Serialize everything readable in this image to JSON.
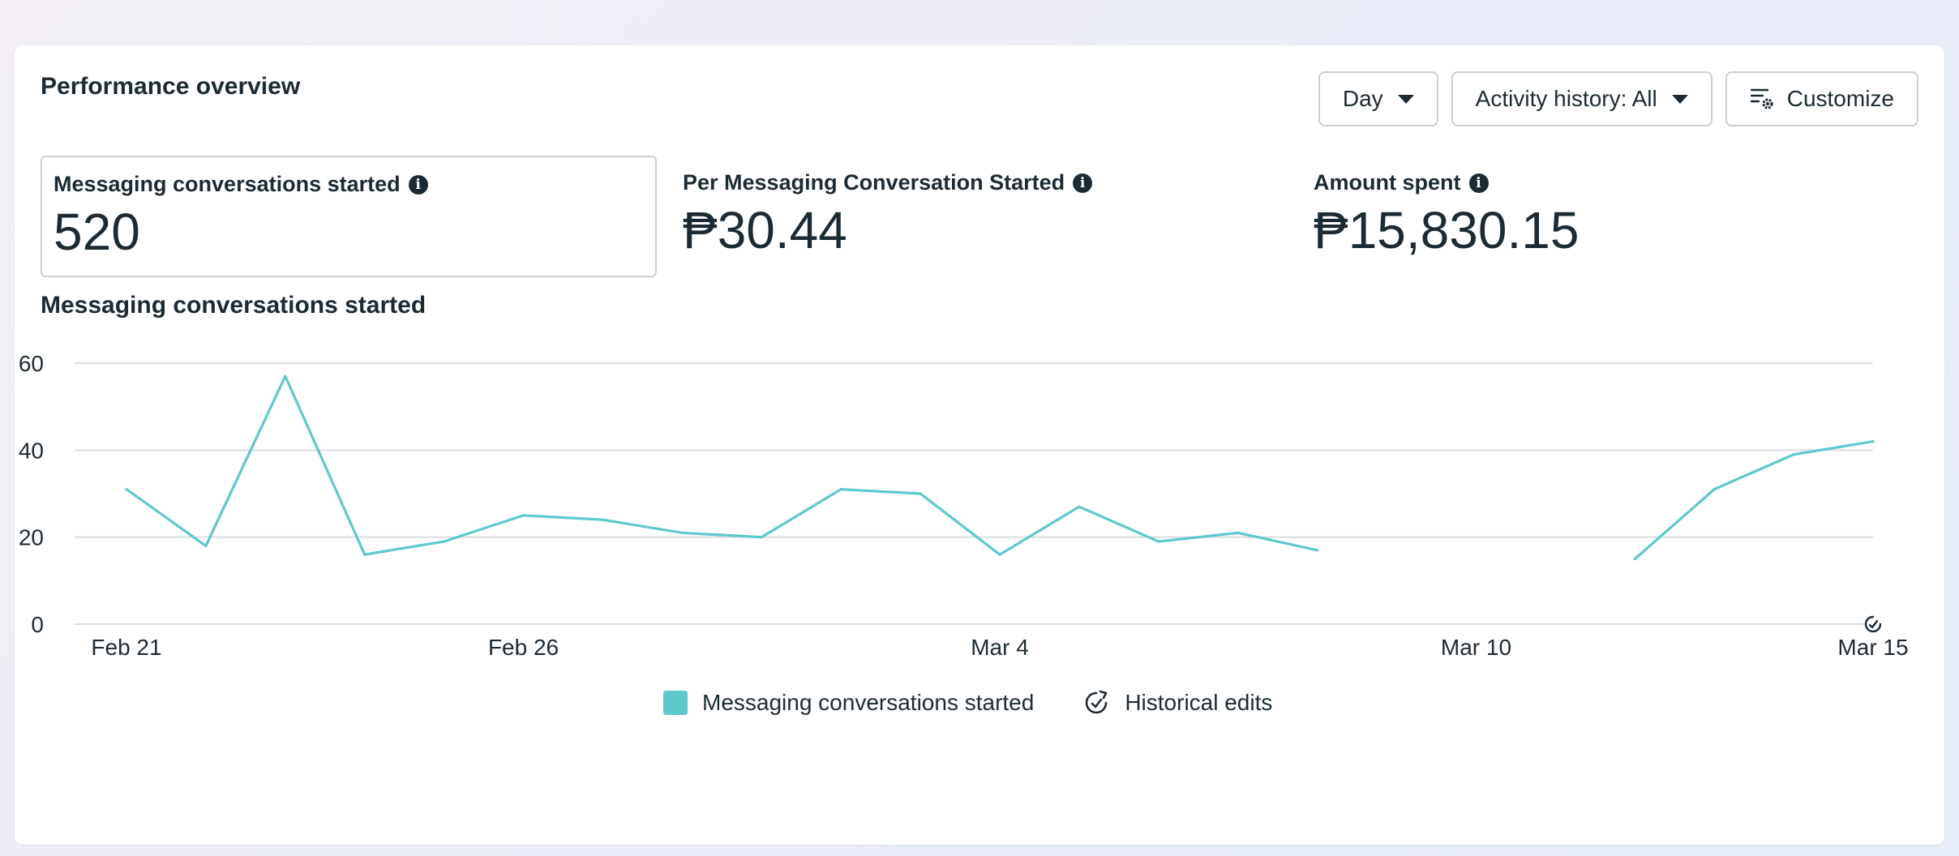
{
  "header": {
    "title": "Performance overview",
    "day_label": "Day",
    "activity_label": "Activity history: All",
    "customize_label": "Customize"
  },
  "metrics": [
    {
      "label": "Messaging conversations started",
      "value": "520"
    },
    {
      "label": "Per Messaging Conversation Started",
      "value": "₱30.44"
    },
    {
      "label": "Amount spent",
      "value": "₱15,830.15"
    }
  ],
  "chart_title": "Messaging conversations started",
  "legend": {
    "series_label": "Messaging conversations started",
    "edits_label": "Historical edits"
  },
  "colors": {
    "series": "#5ec8cd",
    "grid": "#d9dde1",
    "text": "#1c2b33"
  },
  "chart_data": {
    "type": "line",
    "title": "Messaging conversations started",
    "x": [
      "Feb 21",
      "Feb 22",
      "Feb 23",
      "Feb 24",
      "Feb 25",
      "Feb 26",
      "Feb 27",
      "Feb 28",
      "Mar 1",
      "Mar 2",
      "Mar 3",
      "Mar 4",
      "Mar 5",
      "Mar 6",
      "Mar 7",
      "Mar 8",
      "Mar 9",
      "Mar 10",
      "Mar 11",
      "Mar 12",
      "Mar 13",
      "Mar 14",
      "Mar 15"
    ],
    "series": [
      {
        "name": "Messaging conversations started",
        "values": [
          31,
          18,
          57,
          16,
          19,
          25,
          24,
          21,
          20,
          31,
          30,
          16,
          27,
          19,
          21,
          17,
          null,
          null,
          null,
          15,
          31,
          39,
          42
        ]
      }
    ],
    "x_ticks": [
      "Feb 21",
      "Feb 26",
      "Mar 4",
      "Mar 10",
      "Mar 15"
    ],
    "y_ticks": [
      0,
      20,
      40,
      60
    ],
    "ylim": [
      0,
      60
    ],
    "grid": true,
    "legend_position": "bottom-center"
  }
}
